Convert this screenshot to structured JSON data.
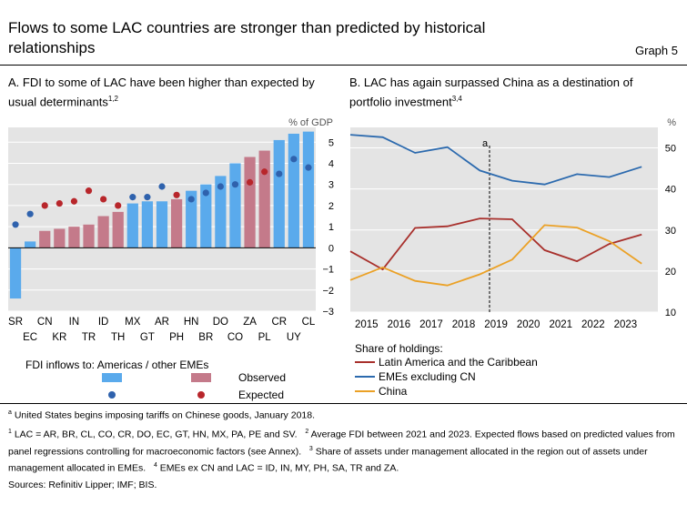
{
  "header": {
    "title": "Flows to some LAC countries are stronger than predicted by historical relationships",
    "graph_label": "Graph 5"
  },
  "panels": {
    "a": {
      "title": "A. FDI to some of LAC have been higher than expected by usual determinants",
      "title_sup": "1,2",
      "unit": "% of GDP",
      "legend_heading": "FDI inflows to: Americas / other EMEs",
      "legend_observed": "Observed",
      "legend_expected": "Expected"
    },
    "b": {
      "title": "B. LAC has again surpassed China as a destination of portfolio investment",
      "title_sup": "3,4",
      "unit": "%",
      "annotation": "a",
      "legend_heading": "Share of holdings:"
    }
  },
  "colors": {
    "americas_bar": "#5aaaec",
    "other_bar": "#c47a8a",
    "americas_dot": "#2f62ad",
    "other_dot": "#b8262b",
    "lac_line": "#a8302c",
    "emes_line": "#2c6aae",
    "china_line": "#eba126",
    "panel_bg": "#e4e4e4"
  },
  "chart_data": [
    {
      "type": "bar",
      "categories": [
        "SR",
        "EC",
        "CN",
        "KR",
        "IN",
        "TR",
        "ID",
        "TH",
        "MX",
        "GT",
        "AR",
        "PH",
        "HN",
        "BR",
        "DO",
        "CO",
        "ZA",
        "PL",
        "CR",
        "UY",
        "CL"
      ],
      "group": [
        "americas",
        "americas",
        "other",
        "other",
        "other",
        "other",
        "other",
        "other",
        "americas",
        "americas",
        "americas",
        "other",
        "americas",
        "americas",
        "americas",
        "americas",
        "other",
        "other",
        "americas",
        "americas",
        "americas"
      ],
      "series": [
        {
          "name": "Observed",
          "values": [
            -2.4,
            0.3,
            0.8,
            0.9,
            1.0,
            1.1,
            1.5,
            1.7,
            2.1,
            2.2,
            2.2,
            2.3,
            2.7,
            3.0,
            3.4,
            4.0,
            4.3,
            4.6,
            5.1,
            5.4,
            5.5
          ]
        },
        {
          "name": "Expected",
          "values": [
            1.1,
            1.6,
            2.0,
            2.1,
            2.2,
            2.7,
            2.3,
            2.0,
            2.4,
            2.4,
            2.9,
            2.5,
            2.3,
            2.6,
            2.9,
            3.0,
            3.1,
            3.6,
            3.5,
            4.2,
            3.8
          ]
        }
      ],
      "tick_labels_upper": [
        "SR",
        "CN",
        "IN",
        "ID",
        "MX",
        "AR",
        "HN",
        "DO",
        "ZA",
        "CR",
        "CL"
      ],
      "tick_labels_lower": [
        "EC",
        "KR",
        "TR",
        "TH",
        "GT",
        "PH",
        "BR",
        "CO",
        "PL",
        "UY"
      ],
      "ylim": [
        -3,
        5.7
      ],
      "yticks": [
        -3,
        -2,
        -1,
        0,
        1,
        2,
        3,
        4,
        5
      ],
      "ylabel": "% of GDP",
      "grid": true,
      "legend": "bottom"
    },
    {
      "type": "line",
      "x": [
        2014.5,
        2015.5,
        2016.5,
        2017.5,
        2018.5,
        2019.5,
        2020.5,
        2021.5,
        2022.5,
        2023.5
      ],
      "xlim": [
        2014.5,
        2024.0
      ],
      "xticks": [
        2015,
        2016,
        2017,
        2018,
        2019,
        2020,
        2021,
        2022,
        2023
      ],
      "ylim": [
        10,
        55
      ],
      "yticks": [
        10,
        20,
        30,
        40,
        50
      ],
      "ylabel": "%",
      "vline": {
        "x": 2018.8,
        "label": "a"
      },
      "grid": true,
      "legend": "bottom",
      "series": [
        {
          "name": "Latin America and the Caribbean",
          "color_key": "lac_line",
          "values": [
            24.8,
            20.4,
            30.5,
            30.9,
            32.8,
            32.6,
            25.1,
            22.4,
            26.6,
            28.9
          ]
        },
        {
          "name": "EMEs excluding CN",
          "color_key": "emes_line",
          "values": [
            53.2,
            52.6,
            48.8,
            50.2,
            44.5,
            42.0,
            41.1,
            43.6,
            42.9,
            45.4
          ]
        },
        {
          "name": "China",
          "color_key": "china_line",
          "values": [
            17.8,
            20.9,
            17.6,
            16.5,
            19.2,
            22.8,
            31.2,
            30.6,
            27.3,
            21.8
          ]
        }
      ]
    }
  ],
  "footnotes": {
    "a_note": "United States begins imposing tariffs on Chinese goods, January 2018.",
    "f1_mark": "1",
    "f1": "LAC = AR, BR, CL, CO, CR, DO, EC, GT, HN, MX, PA, PE and SV.",
    "f2_mark": "2",
    "f2": "Average FDI between 2021 and 2023. Expected flows based on predicted values from panel regressions controlling for macroeconomic factors (see Annex).",
    "f3_mark": "3",
    "f3": "Share of assets under management allocated in the region out of assets under management allocated in EMEs.",
    "f4_mark": "4",
    "f4": "EMEs ex CN and LAC = ID, IN, MY, PH, SA, TR and ZA.",
    "sources": "Sources: Refinitiv Lipper; IMF; BIS."
  }
}
